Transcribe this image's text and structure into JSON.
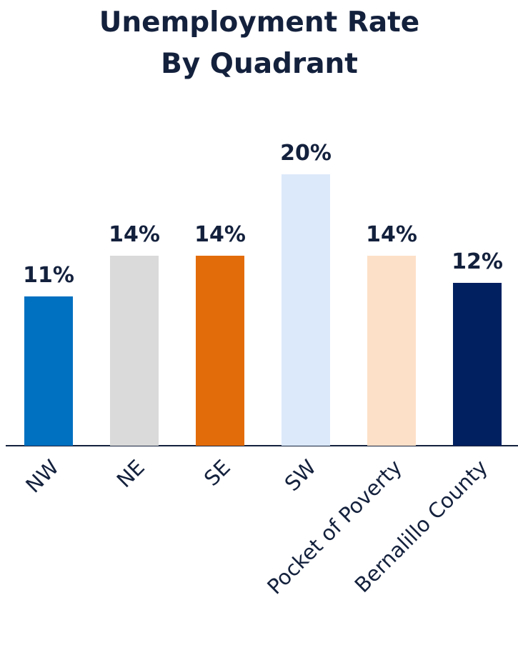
{
  "chart_data": {
    "type": "bar",
    "title": [
      "Unemployment Rate",
      "By Quadrant"
    ],
    "categories": [
      "NW",
      "NE",
      "SE",
      "SW",
      "Pocket of Poverty",
      "Bernalillo County"
    ],
    "values": [
      11,
      14,
      14,
      20,
      14,
      12
    ],
    "value_labels": [
      "11%",
      "14%",
      "14%",
      "20%",
      "14%",
      "12%"
    ],
    "colors": [
      "#0070c0",
      "#dadada",
      "#e36c0a",
      "#dce9fa",
      "#fde0c8",
      "#002060"
    ]
  }
}
